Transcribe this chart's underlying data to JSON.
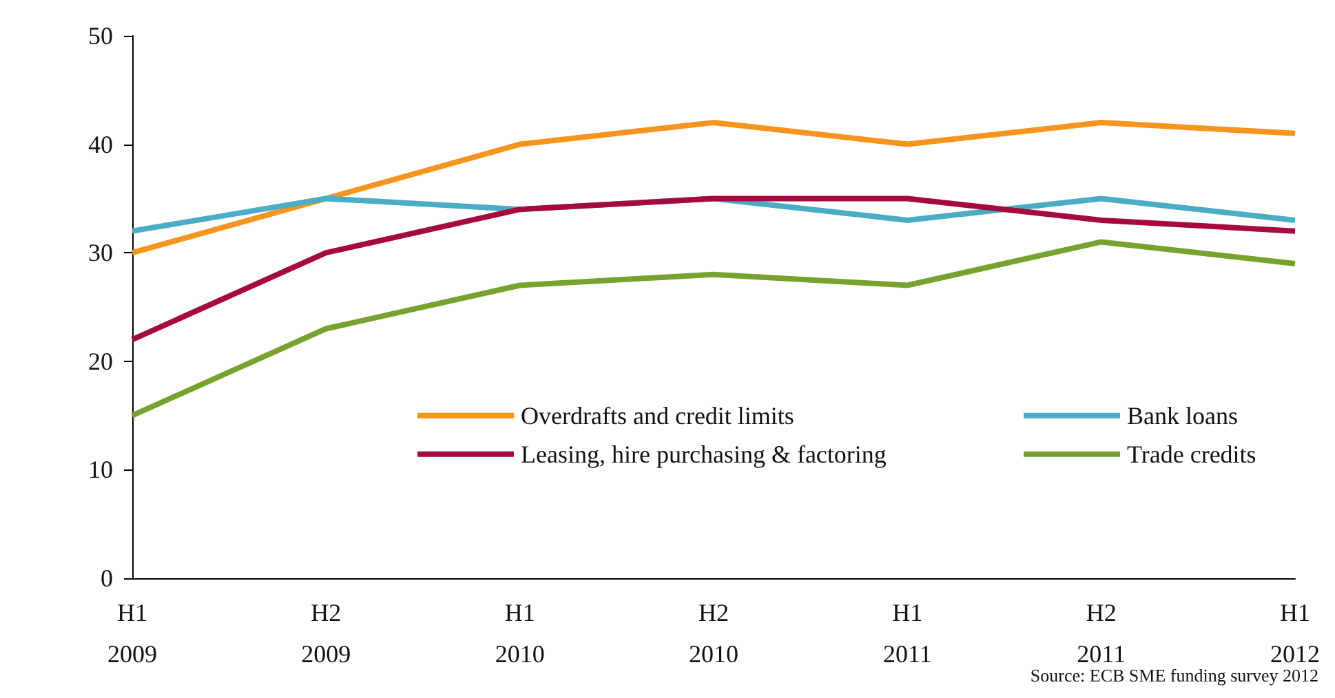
{
  "chart_data": {
    "type": "line",
    "categories": [
      "H1\n2009",
      "H2\n2009",
      "H1\n2010",
      "H2\n2010",
      "H1\n2011",
      "H2\n2011",
      "H1\n2012"
    ],
    "series": [
      {
        "name": "Overdrafts and credit limits",
        "color": "#f7941d",
        "values": [
          30,
          35,
          40,
          42,
          40,
          42,
          41
        ]
      },
      {
        "name": "Bank loans",
        "color": "#4bacc6",
        "values": [
          32,
          35,
          34,
          35,
          33,
          35,
          33
        ]
      },
      {
        "name": "Leasing, hire purchasing & factoring",
        "color": "#a6093d",
        "values": [
          22,
          30,
          34,
          35,
          35,
          33,
          32
        ]
      },
      {
        "name": "Trade credits",
        "color": "#77a22d",
        "values": [
          15,
          23,
          27,
          28,
          27,
          31,
          29
        ]
      }
    ],
    "ylim": [
      0,
      50
    ],
    "yticks": [
      0,
      10,
      20,
      30,
      40,
      50
    ],
    "grid": false,
    "legend": "center right",
    "marker": "none",
    "line_style": "solid",
    "annotations": [
      "Source: ECB SME funding survey 2012"
    ]
  }
}
